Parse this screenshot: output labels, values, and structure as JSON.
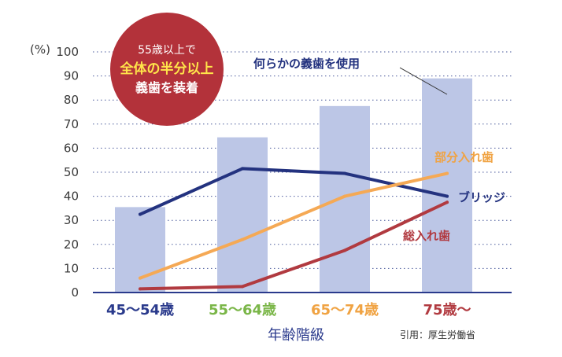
{
  "chart_data": {
    "type": "bar",
    "categories": [
      "45〜54歳",
      "55〜64歳",
      "65〜74歳",
      "75歳〜"
    ],
    "category_colors": [
      "#2a3a8c",
      "#7ab648",
      "#f0a343",
      "#b13a40"
    ],
    "xlabel": "年齢階級",
    "y_unit": "(%)",
    "ylim": [
      0,
      100
    ],
    "yticks": [
      0,
      10,
      20,
      30,
      40,
      50,
      60,
      70,
      80,
      90,
      100
    ],
    "grid": true,
    "series": [
      {
        "name": "何らかの義歯を使用",
        "type": "bar",
        "color": "#bcc6e6",
        "values": [
          35.5,
          64.5,
          77.5,
          89
        ]
      },
      {
        "name": "ブリッジ",
        "type": "line",
        "color": "#23327f",
        "values": [
          32.5,
          51.5,
          49.5,
          40
        ]
      },
      {
        "name": "部分入れ歯",
        "type": "line",
        "color": "#f5a955",
        "values": [
          6,
          22,
          40,
          49.5
        ]
      },
      {
        "name": "総入れ歯",
        "type": "line",
        "color": "#b13a40",
        "values": [
          1.5,
          2.5,
          17.5,
          37.5
        ]
      }
    ],
    "badge": {
      "line1": "55歳以上で",
      "line2": "全体の半分以上",
      "line3": "義歯を装着",
      "color": "#b3323a"
    },
    "source": "引用：厚生労働省"
  }
}
